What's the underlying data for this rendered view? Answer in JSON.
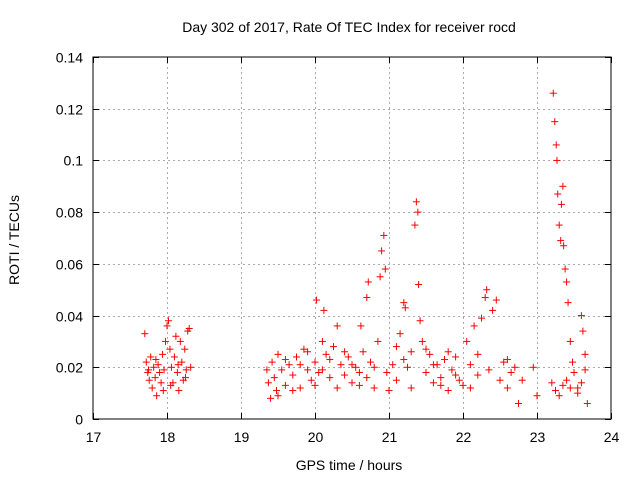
{
  "chart_data": {
    "type": "scatter",
    "title": "Day 302 of 2017, Rate Of TEC Index for receiver rocd",
    "xlabel": "GPS time / hours",
    "ylabel": "ROTI / TECUs",
    "xlim": [
      17,
      24
    ],
    "ylim": [
      0,
      0.14
    ],
    "xticks": [
      17,
      18,
      19,
      20,
      21,
      22,
      23,
      24
    ],
    "xtick_labels": [
      "17",
      "18",
      "19",
      "20",
      "21",
      "22",
      "23",
      "24"
    ],
    "yticks": [
      0,
      0.02,
      0.04,
      0.06,
      0.08,
      0.1,
      0.12,
      0.14
    ],
    "ytick_labels": [
      "0",
      "0.02",
      "0.04",
      "0.06",
      "0.08",
      "0.1",
      "0.12",
      "0.14"
    ],
    "grid": true,
    "marker": "+",
    "series": [
      {
        "name": "ROTI",
        "color": "#ff0000",
        "points": [
          [
            17.7,
            0.033
          ],
          [
            17.72,
            0.022
          ],
          [
            17.74,
            0.018
          ],
          [
            17.76,
            0.015
          ],
          [
            17.78,
            0.024
          ],
          [
            17.8,
            0.012
          ],
          [
            17.82,
            0.02
          ],
          [
            17.84,
            0.016
          ],
          [
            17.86,
            0.009
          ],
          [
            17.88,
            0.021
          ],
          [
            17.9,
            0.018
          ],
          [
            17.92,
            0.014
          ],
          [
            17.94,
            0.025
          ],
          [
            17.96,
            0.019
          ],
          [
            17.98,
            0.03
          ],
          [
            18.0,
            0.036
          ],
          [
            18.02,
            0.038
          ],
          [
            18.04,
            0.027
          ],
          [
            18.06,
            0.02
          ],
          [
            18.08,
            0.014
          ],
          [
            18.1,
            0.024
          ],
          [
            18.12,
            0.032
          ],
          [
            18.14,
            0.018
          ],
          [
            18.16,
            0.011
          ],
          [
            18.18,
            0.03
          ],
          [
            18.2,
            0.022
          ],
          [
            18.22,
            0.015
          ],
          [
            18.24,
            0.027
          ],
          [
            18.26,
            0.019
          ],
          [
            18.28,
            0.034
          ],
          [
            18.3,
            0.035
          ],
          [
            18.32,
            0.02
          ],
          [
            17.75,
            0.019
          ],
          [
            17.85,
            0.023
          ],
          [
            18.05,
            0.013
          ],
          [
            18.15,
            0.021
          ],
          [
            18.25,
            0.016
          ],
          [
            17.95,
            0.011
          ],
          [
            19.35,
            0.019
          ],
          [
            19.37,
            0.014
          ],
          [
            19.4,
            0.008
          ],
          [
            19.42,
            0.022
          ],
          [
            19.45,
            0.016
          ],
          [
            19.48,
            0.011
          ],
          [
            19.5,
            0.025
          ],
          [
            19.55,
            0.019
          ],
          [
            19.6,
            0.013
          ],
          [
            19.65,
            0.021
          ],
          [
            19.7,
            0.017
          ],
          [
            19.75,
            0.024
          ],
          [
            19.8,
            0.012
          ],
          [
            19.85,
            0.027
          ],
          [
            19.9,
            0.019
          ],
          [
            19.95,
            0.015
          ],
          [
            20.0,
            0.022
          ],
          [
            20.02,
            0.046
          ],
          [
            20.05,
            0.018
          ],
          [
            20.1,
            0.03
          ],
          [
            20.12,
            0.042
          ],
          [
            20.15,
            0.025
          ],
          [
            20.2,
            0.016
          ],
          [
            20.25,
            0.028
          ],
          [
            20.3,
            0.036
          ],
          [
            20.35,
            0.021
          ],
          [
            20.4,
            0.017
          ],
          [
            20.45,
            0.024
          ],
          [
            20.5,
            0.014
          ],
          [
            20.55,
            0.02
          ],
          [
            20.6,
            0.018
          ],
          [
            20.62,
            0.036
          ],
          [
            20.65,
            0.026
          ],
          [
            20.7,
            0.047
          ],
          [
            20.72,
            0.053
          ],
          [
            20.75,
            0.022
          ],
          [
            20.8,
            0.012
          ],
          [
            20.85,
            0.03
          ],
          [
            20.88,
            0.055
          ],
          [
            20.9,
            0.065
          ],
          [
            20.93,
            0.071
          ],
          [
            20.95,
            0.058
          ],
          [
            20.97,
            0.018
          ],
          [
            21.0,
            0.011
          ],
          [
            21.05,
            0.021
          ],
          [
            21.1,
            0.028
          ],
          [
            21.15,
            0.033
          ],
          [
            21.2,
            0.045
          ],
          [
            21.22,
            0.043
          ],
          [
            21.25,
            0.02
          ],
          [
            21.3,
            0.026
          ],
          [
            21.35,
            0.075
          ],
          [
            21.37,
            0.084
          ],
          [
            21.39,
            0.08
          ],
          [
            21.4,
            0.052
          ],
          [
            21.42,
            0.038
          ],
          [
            21.45,
            0.03
          ],
          [
            21.5,
            0.018
          ],
          [
            21.55,
            0.025
          ],
          [
            21.6,
            0.014
          ],
          [
            21.65,
            0.021
          ],
          [
            21.7,
            0.016
          ],
          [
            21.75,
            0.023
          ],
          [
            21.8,
            0.011
          ],
          [
            21.85,
            0.019
          ],
          [
            21.9,
            0.024
          ],
          [
            21.95,
            0.015
          ],
          [
            22.0,
            0.013
          ],
          [
            22.05,
            0.03
          ],
          [
            22.1,
            0.021
          ],
          [
            22.15,
            0.036
          ],
          [
            22.2,
            0.025
          ],
          [
            22.25,
            0.039
          ],
          [
            22.3,
            0.047
          ],
          [
            22.32,
            0.05
          ],
          [
            22.35,
            0.019
          ],
          [
            22.4,
            0.042
          ],
          [
            22.45,
            0.046
          ],
          [
            22.5,
            0.015
          ],
          [
            22.55,
            0.022
          ],
          [
            22.6,
            0.012
          ],
          [
            22.65,
            0.018
          ],
          [
            22.7,
            0.02
          ],
          [
            22.75,
            0.006
          ],
          [
            22.8,
            0.015
          ],
          [
            19.5,
            0.009
          ],
          [
            19.6,
            0.023
          ],
          [
            19.7,
            0.011
          ],
          [
            19.8,
            0.021
          ],
          [
            19.9,
            0.026
          ],
          [
            20.0,
            0.013
          ],
          [
            20.1,
            0.019
          ],
          [
            20.2,
            0.023
          ],
          [
            20.3,
            0.012
          ],
          [
            20.4,
            0.026
          ],
          [
            20.5,
            0.021
          ],
          [
            20.6,
            0.013
          ],
          [
            20.7,
            0.016
          ],
          [
            20.8,
            0.02
          ],
          [
            21.1,
            0.015
          ],
          [
            21.2,
            0.023
          ],
          [
            21.3,
            0.012
          ],
          [
            21.5,
            0.027
          ],
          [
            21.6,
            0.021
          ],
          [
            21.7,
            0.013
          ],
          [
            21.8,
            0.026
          ],
          [
            21.9,
            0.017
          ],
          [
            22.1,
            0.012
          ],
          [
            22.2,
            0.017
          ],
          [
            22.6,
            0.023
          ],
          [
            22.95,
            0.02
          ],
          [
            23.0,
            0.009
          ],
          [
            23.2,
            0.014
          ],
          [
            23.22,
            0.126
          ],
          [
            23.24,
            0.115
          ],
          [
            23.26,
            0.106
          ],
          [
            23.27,
            0.1
          ],
          [
            23.28,
            0.087
          ],
          [
            23.3,
            0.075
          ],
          [
            23.32,
            0.069
          ],
          [
            23.33,
            0.083
          ],
          [
            23.35,
            0.09
          ],
          [
            23.36,
            0.067
          ],
          [
            23.38,
            0.058
          ],
          [
            23.4,
            0.053
          ],
          [
            23.42,
            0.045
          ],
          [
            23.45,
            0.03
          ],
          [
            23.48,
            0.022
          ],
          [
            23.5,
            0.018
          ],
          [
            23.55,
            0.012
          ],
          [
            23.6,
            0.04
          ],
          [
            23.62,
            0.034
          ],
          [
            23.65,
            0.025
          ],
          [
            23.68,
            0.006
          ],
          [
            23.25,
            0.011
          ],
          [
            23.3,
            0.009
          ],
          [
            23.35,
            0.013
          ],
          [
            23.4,
            0.015
          ],
          [
            23.45,
            0.012
          ],
          [
            23.55,
            0.01
          ],
          [
            23.6,
            0.014
          ],
          [
            23.65,
            0.019
          ]
        ]
      }
    ]
  }
}
